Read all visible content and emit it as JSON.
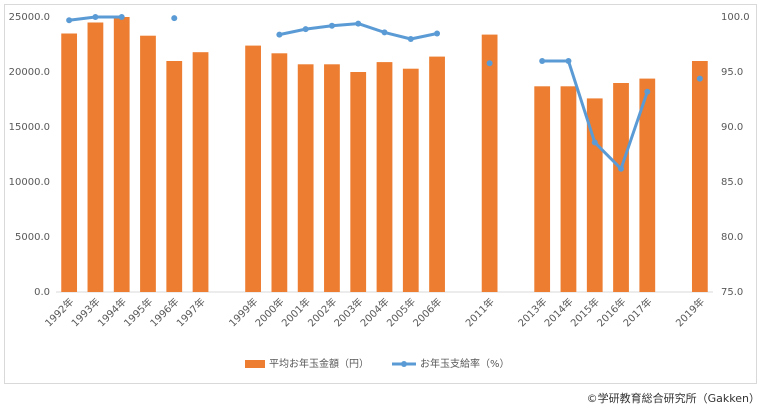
{
  "chart_data": {
    "type": "bar_line",
    "categories": [
      "1992年",
      "1993年",
      "1994年",
      "1995年",
      "1996年",
      "1997年",
      null,
      "1999年",
      "2000年",
      "2001年",
      "2002年",
      "2003年",
      "2004年",
      "2005年",
      "2006年",
      null,
      "2011年",
      null,
      "2013年",
      "2014年",
      "2015年",
      "2016年",
      "2017年",
      null,
      "2019年"
    ],
    "series": [
      {
        "name": "平均お年玉金額（円）",
        "color": "#ed7d31",
        "type": "bar",
        "values": [
          23500,
          24500,
          25000,
          23300,
          21000,
          21800,
          null,
          22400,
          21700,
          20700,
          20700,
          20000,
          20900,
          20300,
          21400,
          null,
          23400,
          null,
          18700,
          18700,
          17600,
          19000,
          19400,
          null,
          21000
        ]
      },
      {
        "name": "お年玉支給率（%）",
        "color": "#5b9bd5",
        "type": "line",
        "axis": "y2",
        "values": [
          99.7,
          100,
          100,
          null,
          99.9,
          null,
          null,
          null,
          98.4,
          98.9,
          99.2,
          99.4,
          98.6,
          98.0,
          98.5,
          null,
          95.8,
          null,
          96.0,
          96.0,
          88.6,
          86.2,
          93.2,
          null,
          94.4
        ]
      }
    ],
    "ylim": [
      0,
      25000
    ],
    "yticks": [
      {
        "value": 0,
        "label": "0.0"
      },
      {
        "value": 5000,
        "label": "5000.0"
      },
      {
        "value": 10000,
        "label": "10000.0"
      },
      {
        "value": 15000,
        "label": "15000.0"
      },
      {
        "value": 20000,
        "label": "20000.0"
      },
      {
        "value": 25000,
        "label": "25000.0"
      }
    ],
    "y2lim": [
      75,
      100
    ],
    "y2ticks": [
      {
        "value": 75,
        "label": "75.0"
      },
      {
        "value": 80,
        "label": "80.0"
      },
      {
        "value": 85,
        "label": "85.0"
      },
      {
        "value": 90,
        "label": "90.0"
      },
      {
        "value": 95,
        "label": "95.0"
      },
      {
        "value": 100,
        "label": "100.0"
      }
    ],
    "legend": "bottom",
    "source": "©学研教育総合研究所（Gakken）"
  }
}
